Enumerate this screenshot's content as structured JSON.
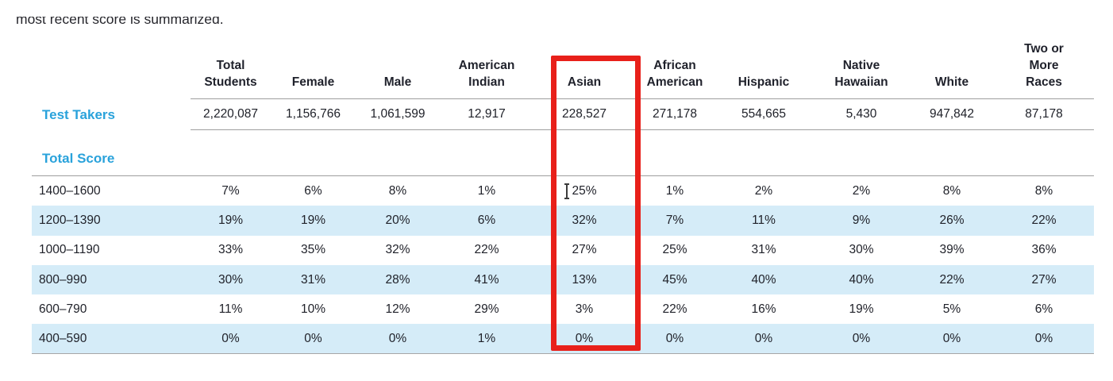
{
  "intro": {
    "text": "most recent score is summarized."
  },
  "colors": {
    "accent_blue": "#29a2db",
    "row_stripe": "#d5ecf8",
    "highlight_red": "#e8201a",
    "rule_gray": "#9e9e9e"
  },
  "table": {
    "columns": [
      "Total\nStudents",
      "Female",
      "Male",
      "American\nIndian",
      "Asian",
      "African\nAmerican",
      "Hispanic",
      "Native\nHawaiian",
      "White",
      "Two or\nMore\nRaces"
    ],
    "highlighted_column": "Asian",
    "test_takers": {
      "label": "Test Takers",
      "values": [
        "2,220,087",
        "1,156,766",
        "1,061,599",
        "12,917",
        "228,527",
        "271,178",
        "554,665",
        "5,430",
        "947,842",
        "87,178"
      ]
    },
    "section_label": "Total Score",
    "rows": [
      {
        "label": "1400–1600",
        "values": [
          "7%",
          "6%",
          "8%",
          "1%",
          "25%",
          "1%",
          "2%",
          "2%",
          "8%",
          "8%"
        ]
      },
      {
        "label": "1200–1390",
        "values": [
          "19%",
          "19%",
          "20%",
          "6%",
          "32%",
          "7%",
          "11%",
          "9%",
          "26%",
          "22%"
        ]
      },
      {
        "label": "1000–1190",
        "values": [
          "33%",
          "35%",
          "32%",
          "22%",
          "27%",
          "25%",
          "31%",
          "30%",
          "39%",
          "36%"
        ]
      },
      {
        "label": "800–990",
        "values": [
          "30%",
          "31%",
          "28%",
          "41%",
          "13%",
          "45%",
          "40%",
          "40%",
          "22%",
          "27%"
        ]
      },
      {
        "label": "600–790",
        "values": [
          "11%",
          "10%",
          "12%",
          "29%",
          "3%",
          "22%",
          "16%",
          "19%",
          "5%",
          "6%"
        ]
      },
      {
        "label": "400–590",
        "values": [
          "0%",
          "0%",
          "0%",
          "1%",
          "0%",
          "0%",
          "0%",
          "0%",
          "0%",
          "0%"
        ]
      }
    ]
  }
}
